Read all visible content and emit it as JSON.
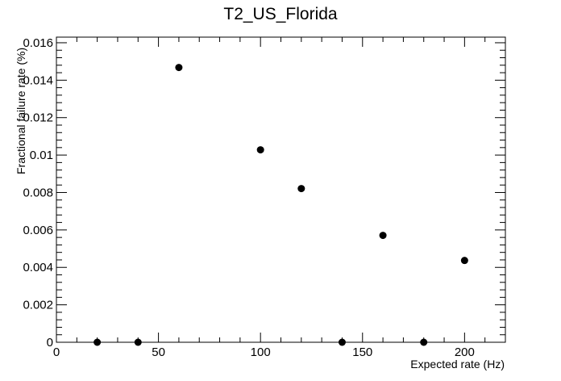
{
  "chart_data": {
    "type": "scatter",
    "title": "T2_US_Florida",
    "xlabel": "Expected rate (Hz)",
    "ylabel": "Fractional failure rate (%)",
    "xlim": [
      0,
      220
    ],
    "ylim": [
      0,
      0.0163
    ],
    "x_ticks": [
      0,
      50,
      100,
      150,
      200
    ],
    "x_tick_labels": [
      "0",
      "50",
      "100",
      "150",
      "200"
    ],
    "y_ticks": [
      0,
      0.002,
      0.004,
      0.006,
      0.008,
      0.01,
      0.012,
      0.014,
      0.016
    ],
    "y_tick_labels": [
      "0",
      "0.002",
      "0.004",
      "0.006",
      "0.008",
      "0.01",
      "0.012",
      "0.014",
      "0.016"
    ],
    "grid": false,
    "marker_color": "#000000",
    "points": [
      {
        "x": 20,
        "y": 0
      },
      {
        "x": 40,
        "y": 0
      },
      {
        "x": 60,
        "y": 0.01468
      },
      {
        "x": 100,
        "y": 0.01028
      },
      {
        "x": 120,
        "y": 0.00821
      },
      {
        "x": 140,
        "y": 0
      },
      {
        "x": 160,
        "y": 0.00571
      },
      {
        "x": 180,
        "y": 0
      },
      {
        "x": 200,
        "y": 0.00437
      }
    ]
  }
}
